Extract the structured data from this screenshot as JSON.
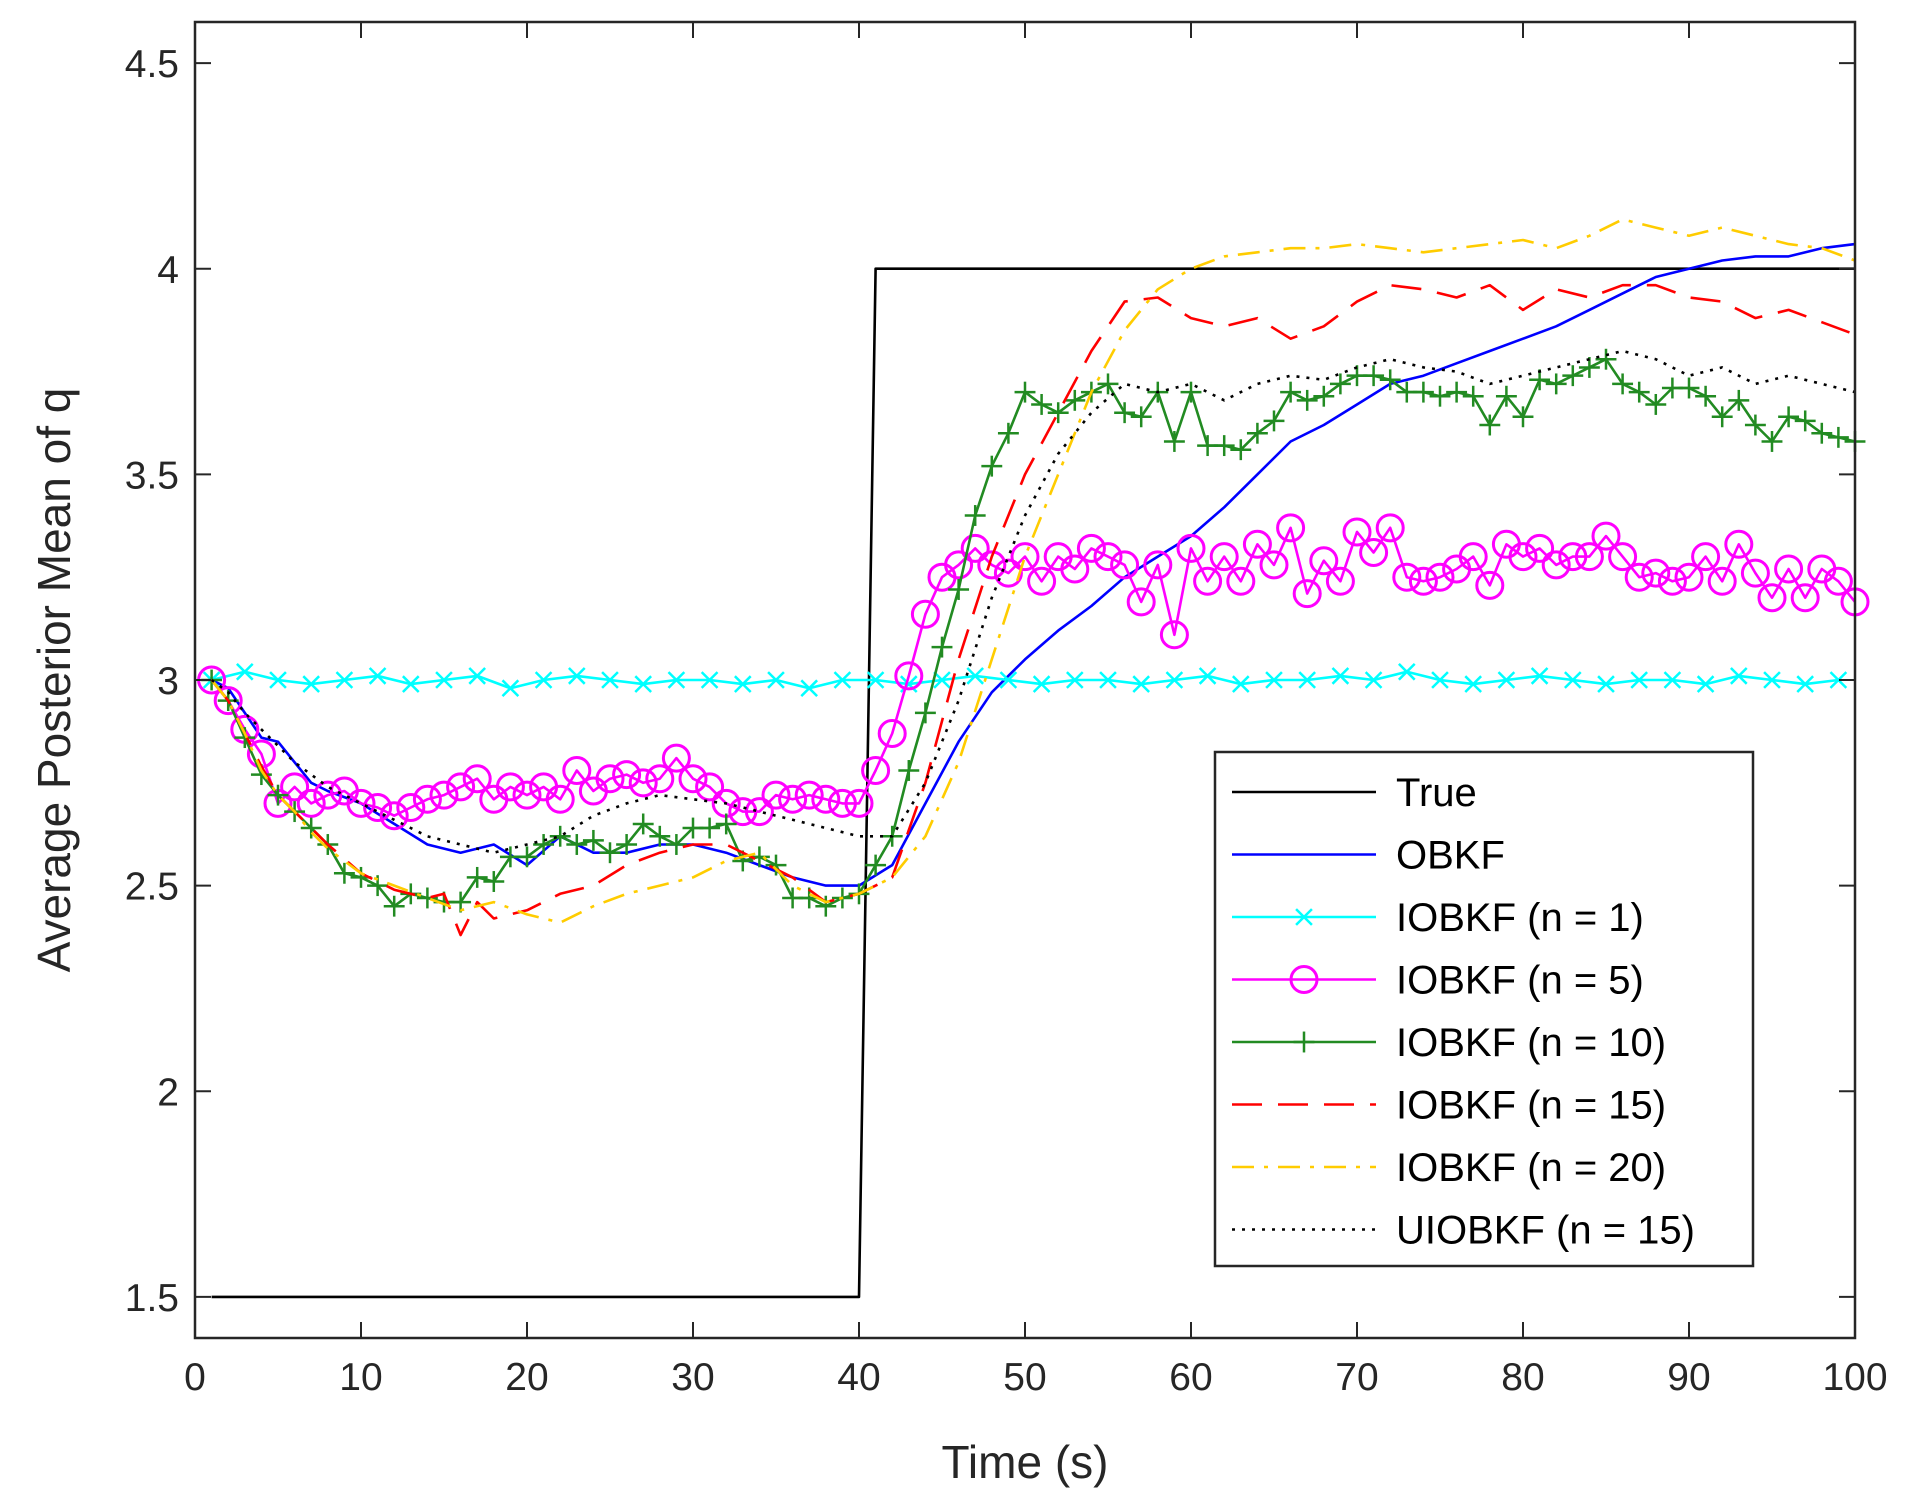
{
  "chart_data": {
    "type": "line",
    "title": "",
    "xlabel": "Time (s)",
    "ylabel": "Average Posterior Mean of q",
    "xlim": [
      0,
      100
    ],
    "ylim": [
      1.4,
      4.6
    ],
    "xticks": [
      0,
      10,
      20,
      30,
      40,
      50,
      60,
      70,
      80,
      90,
      100
    ],
    "yticks": [
      1.5,
      2,
      2.5,
      3,
      3.5,
      4,
      4.5
    ],
    "xtick_labels": [
      "0",
      "10",
      "20",
      "30",
      "40",
      "50",
      "60",
      "70",
      "80",
      "90",
      "100"
    ],
    "ytick_labels": [
      "1.5",
      "2",
      "2.5",
      "3",
      "3.5",
      "4",
      "4.5"
    ],
    "grid": false,
    "legend_position": "lower-right",
    "series": [
      {
        "name": "True",
        "color": "#000000",
        "dash": "solid",
        "marker": "none",
        "x": [
          1,
          40,
          41,
          100
        ],
        "y": [
          1.5,
          1.5,
          4.0,
          4.0
        ]
      },
      {
        "name": "OBKF",
        "color": "#0000ff",
        "dash": "solid",
        "marker": "none",
        "x": [
          1,
          2,
          3,
          4,
          5,
          6,
          7,
          8,
          10,
          12,
          14,
          16,
          18,
          20,
          22,
          24,
          26,
          28,
          30,
          32,
          34,
          36,
          38,
          40,
          42,
          44,
          46,
          48,
          50,
          52,
          54,
          56,
          58,
          60,
          62,
          64,
          66,
          68,
          70,
          72,
          74,
          76,
          78,
          80,
          82,
          84,
          86,
          88,
          90,
          92,
          94,
          96,
          98,
          100
        ],
        "y": [
          3.0,
          2.98,
          2.92,
          2.86,
          2.85,
          2.8,
          2.75,
          2.73,
          2.7,
          2.65,
          2.6,
          2.58,
          2.6,
          2.55,
          2.62,
          2.58,
          2.58,
          2.6,
          2.6,
          2.58,
          2.55,
          2.52,
          2.5,
          2.5,
          2.55,
          2.7,
          2.85,
          2.97,
          3.05,
          3.12,
          3.18,
          3.25,
          3.3,
          3.35,
          3.42,
          3.5,
          3.58,
          3.62,
          3.67,
          3.72,
          3.74,
          3.77,
          3.8,
          3.83,
          3.86,
          3.9,
          3.94,
          3.98,
          4.0,
          4.02,
          4.03,
          4.03,
          4.05,
          4.06
        ]
      },
      {
        "name": "IOBKF (n = 1)",
        "color": "#00ffff",
        "dash": "solid",
        "marker": "x",
        "x": [
          1,
          3,
          5,
          7,
          9,
          11,
          13,
          15,
          17,
          19,
          21,
          23,
          25,
          27,
          29,
          31,
          33,
          35,
          37,
          39,
          41,
          43,
          45,
          47,
          49,
          51,
          53,
          55,
          57,
          59,
          61,
          63,
          65,
          67,
          69,
          71,
          73,
          75,
          77,
          79,
          81,
          83,
          85,
          87,
          89,
          91,
          93,
          95,
          97,
          99
        ],
        "y": [
          3.0,
          3.02,
          3.0,
          2.99,
          3.0,
          3.01,
          2.99,
          3.0,
          3.01,
          2.98,
          3.0,
          3.01,
          3.0,
          2.99,
          3.0,
          3.0,
          2.99,
          3.0,
          2.98,
          3.0,
          3.0,
          2.99,
          3.0,
          3.01,
          3.0,
          2.99,
          3.0,
          3.0,
          2.99,
          3.0,
          3.01,
          2.99,
          3.0,
          3.0,
          3.01,
          3.0,
          3.02,
          3.0,
          2.99,
          3.0,
          3.01,
          3.0,
          2.99,
          3.0,
          3.0,
          2.99,
          3.01,
          3.0,
          2.99,
          3.0
        ]
      },
      {
        "name": "IOBKF (n = 5)",
        "color": "#ff00ff",
        "dash": "solid",
        "marker": "o",
        "x": [
          1,
          2,
          3,
          4,
          5,
          6,
          7,
          8,
          9,
          10,
          11,
          12,
          13,
          14,
          15,
          16,
          17,
          18,
          19,
          20,
          21,
          22,
          23,
          24,
          25,
          26,
          27,
          28,
          29,
          30,
          31,
          32,
          33,
          34,
          35,
          36,
          37,
          38,
          39,
          40,
          41,
          42,
          43,
          44,
          45,
          46,
          47,
          48,
          49,
          50,
          51,
          52,
          53,
          54,
          55,
          56,
          57,
          58,
          59,
          60,
          61,
          62,
          63,
          64,
          65,
          66,
          67,
          68,
          69,
          70,
          71,
          72,
          73,
          74,
          75,
          76,
          77,
          78,
          79,
          80,
          81,
          82,
          83,
          84,
          85,
          86,
          87,
          88,
          89,
          90,
          91,
          92,
          93,
          94,
          95,
          96,
          97,
          98,
          99,
          100
        ],
        "y": [
          3.0,
          2.95,
          2.88,
          2.82,
          2.7,
          2.74,
          2.7,
          2.72,
          2.73,
          2.7,
          2.69,
          2.67,
          2.69,
          2.71,
          2.72,
          2.74,
          2.76,
          2.71,
          2.74,
          2.72,
          2.74,
          2.71,
          2.78,
          2.73,
          2.76,
          2.77,
          2.75,
          2.76,
          2.81,
          2.76,
          2.74,
          2.7,
          2.68,
          2.68,
          2.72,
          2.71,
          2.72,
          2.71,
          2.7,
          2.7,
          2.78,
          2.87,
          3.01,
          3.16,
          3.25,
          3.28,
          3.32,
          3.28,
          3.26,
          3.3,
          3.24,
          3.3,
          3.27,
          3.32,
          3.3,
          3.28,
          3.19,
          3.28,
          3.11,
          3.32,
          3.24,
          3.3,
          3.24,
          3.33,
          3.28,
          3.37,
          3.21,
          3.29,
          3.24,
          3.36,
          3.31,
          3.37,
          3.25,
          3.24,
          3.25,
          3.27,
          3.3,
          3.23,
          3.33,
          3.3,
          3.32,
          3.28,
          3.3,
          3.3,
          3.35,
          3.3,
          3.25,
          3.26,
          3.24,
          3.25,
          3.3,
          3.24,
          3.33,
          3.26,
          3.2,
          3.27,
          3.2,
          3.27,
          3.24,
          3.19
        ]
      },
      {
        "name": "IOBKF (n = 10)",
        "color": "#228b22",
        "dash": "solid",
        "marker": "+",
        "x": [
          1,
          2,
          3,
          4,
          5,
          6,
          7,
          8,
          9,
          10,
          11,
          12,
          13,
          14,
          15,
          16,
          17,
          18,
          19,
          20,
          21,
          22,
          23,
          24,
          25,
          26,
          27,
          28,
          29,
          30,
          31,
          32,
          33,
          34,
          35,
          36,
          37,
          38,
          39,
          40,
          41,
          42,
          43,
          44,
          45,
          46,
          47,
          48,
          49,
          50,
          51,
          52,
          53,
          54,
          55,
          56,
          57,
          58,
          59,
          60,
          61,
          62,
          63,
          64,
          65,
          66,
          67,
          68,
          69,
          70,
          71,
          72,
          73,
          74,
          75,
          76,
          77,
          78,
          79,
          80,
          81,
          82,
          83,
          84,
          85,
          86,
          87,
          88,
          89,
          90,
          91,
          92,
          93,
          94,
          95,
          96,
          97,
          98,
          99,
          100
        ],
        "y": [
          3.0,
          2.95,
          2.86,
          2.77,
          2.72,
          2.68,
          2.64,
          2.6,
          2.53,
          2.52,
          2.5,
          2.45,
          2.48,
          2.47,
          2.46,
          2.46,
          2.52,
          2.51,
          2.57,
          2.57,
          2.6,
          2.62,
          2.6,
          2.61,
          2.58,
          2.6,
          2.65,
          2.62,
          2.6,
          2.64,
          2.64,
          2.65,
          2.56,
          2.57,
          2.55,
          2.47,
          2.47,
          2.45,
          2.47,
          2.48,
          2.55,
          2.62,
          2.78,
          2.92,
          3.08,
          3.22,
          3.4,
          3.52,
          3.6,
          3.7,
          3.67,
          3.65,
          3.68,
          3.7,
          3.72,
          3.65,
          3.64,
          3.7,
          3.58,
          3.7,
          3.57,
          3.57,
          3.56,
          3.6,
          3.63,
          3.7,
          3.68,
          3.69,
          3.72,
          3.74,
          3.74,
          3.73,
          3.7,
          3.7,
          3.69,
          3.7,
          3.69,
          3.62,
          3.69,
          3.64,
          3.73,
          3.72,
          3.74,
          3.76,
          3.78,
          3.72,
          3.7,
          3.67,
          3.71,
          3.71,
          3.69,
          3.64,
          3.68,
          3.62,
          3.58,
          3.64,
          3.63,
          3.6,
          3.59,
          3.58
        ]
      },
      {
        "name": "IOBKF (n = 15)",
        "color": "#ff0000",
        "dash": "long-dash",
        "marker": "none",
        "x": [
          1,
          2,
          3,
          4,
          5,
          6,
          7,
          8,
          10,
          12,
          14,
          15,
          16,
          17,
          18,
          20,
          22,
          24,
          26,
          28,
          30,
          32,
          34,
          36,
          38,
          40,
          42,
          44,
          46,
          48,
          50,
          52,
          54,
          56,
          58,
          60,
          62,
          64,
          66,
          68,
          70,
          72,
          74,
          76,
          78,
          80,
          82,
          84,
          86,
          88,
          90,
          92,
          94,
          96,
          98,
          100
        ],
        "y": [
          3.0,
          2.95,
          2.87,
          2.79,
          2.72,
          2.68,
          2.64,
          2.6,
          2.53,
          2.49,
          2.47,
          2.48,
          2.38,
          2.46,
          2.42,
          2.44,
          2.48,
          2.5,
          2.55,
          2.58,
          2.6,
          2.6,
          2.56,
          2.52,
          2.46,
          2.48,
          2.52,
          2.75,
          3.05,
          3.3,
          3.5,
          3.65,
          3.8,
          3.92,
          3.93,
          3.88,
          3.86,
          3.88,
          3.83,
          3.86,
          3.92,
          3.96,
          3.95,
          3.93,
          3.96,
          3.9,
          3.95,
          3.93,
          3.96,
          3.96,
          3.93,
          3.92,
          3.88,
          3.9,
          3.87,
          3.84
        ]
      },
      {
        "name": "IOBKF (n = 20)",
        "color": "#ffcc00",
        "dash": "dash-dot",
        "marker": "none",
        "x": [
          1,
          2,
          3,
          4,
          5,
          6,
          7,
          8,
          10,
          12,
          14,
          16,
          18,
          20,
          22,
          24,
          26,
          28,
          30,
          32,
          34,
          36,
          38,
          40,
          42,
          44,
          46,
          48,
          50,
          52,
          54,
          56,
          58,
          60,
          62,
          64,
          66,
          68,
          70,
          72,
          74,
          76,
          78,
          80,
          82,
          84,
          86,
          88,
          90,
          92,
          94,
          96,
          98,
          100
        ],
        "y": [
          3.0,
          2.95,
          2.87,
          2.78,
          2.72,
          2.68,
          2.63,
          2.59,
          2.53,
          2.5,
          2.47,
          2.44,
          2.46,
          2.43,
          2.41,
          2.45,
          2.48,
          2.5,
          2.52,
          2.56,
          2.58,
          2.5,
          2.46,
          2.48,
          2.52,
          2.62,
          2.8,
          3.05,
          3.3,
          3.5,
          3.7,
          3.85,
          3.95,
          4.0,
          4.03,
          4.04,
          4.05,
          4.05,
          4.06,
          4.05,
          4.04,
          4.05,
          4.06,
          4.07,
          4.05,
          4.08,
          4.12,
          4.1,
          4.08,
          4.1,
          4.08,
          4.06,
          4.05,
          4.02
        ]
      },
      {
        "name": "UIOBKF (n = 15)",
        "color": "#000000",
        "dash": "dotted",
        "marker": "none",
        "x": [
          1,
          2,
          3,
          4,
          5,
          6,
          7,
          8,
          10,
          12,
          14,
          16,
          18,
          20,
          22,
          24,
          26,
          28,
          30,
          32,
          34,
          36,
          38,
          40,
          42,
          44,
          46,
          48,
          50,
          52,
          54,
          56,
          58,
          60,
          62,
          64,
          66,
          68,
          70,
          72,
          74,
          76,
          78,
          80,
          82,
          84,
          86,
          88,
          90,
          92,
          94,
          96,
          98,
          100
        ],
        "y": [
          3.0,
          2.97,
          2.92,
          2.88,
          2.84,
          2.8,
          2.77,
          2.74,
          2.7,
          2.66,
          2.62,
          2.6,
          2.58,
          2.6,
          2.62,
          2.67,
          2.7,
          2.72,
          2.71,
          2.7,
          2.68,
          2.66,
          2.64,
          2.62,
          2.62,
          2.75,
          2.95,
          3.2,
          3.4,
          3.55,
          3.65,
          3.72,
          3.7,
          3.72,
          3.68,
          3.72,
          3.74,
          3.73,
          3.76,
          3.78,
          3.76,
          3.75,
          3.72,
          3.74,
          3.76,
          3.78,
          3.8,
          3.78,
          3.74,
          3.76,
          3.72,
          3.74,
          3.72,
          3.7
        ]
      }
    ]
  }
}
